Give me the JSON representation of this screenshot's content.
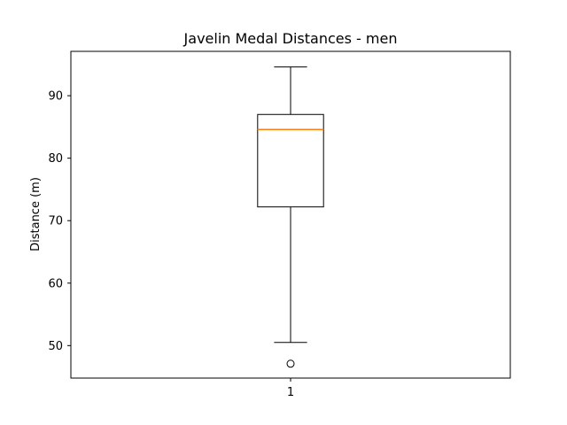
{
  "chart_data": {
    "type": "box",
    "title": "Javelin Medal Distances - men",
    "xlabel": "",
    "ylabel": "Distance (m)",
    "categories": [
      "1"
    ],
    "ylim": [
      44.8,
      97.1
    ],
    "yticks": [
      50,
      60,
      70,
      80,
      90
    ],
    "grid": false,
    "boxes": [
      {
        "label": "1",
        "whisker_low": 50.5,
        "q1": 72.2,
        "median": 84.6,
        "q3": 87.0,
        "whisker_high": 94.6,
        "outliers": [
          47.1
        ]
      }
    ],
    "colors": {
      "box": "#000000",
      "median": "#ff7f0e",
      "outlier": "#000000"
    }
  }
}
